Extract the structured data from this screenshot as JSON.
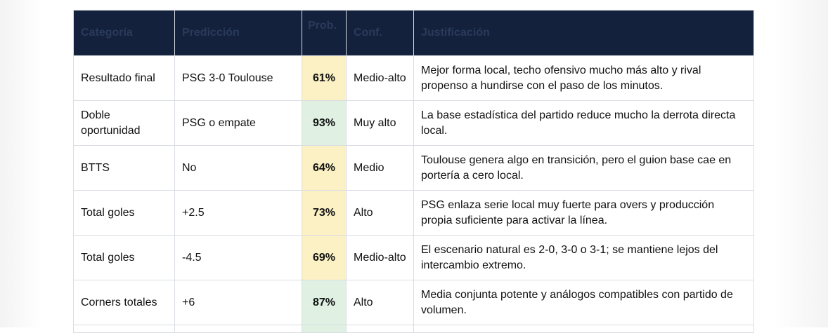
{
  "headers": {
    "categoria": "Categoría",
    "prediccion": "Predicción",
    "prob": "Prob.",
    "conf": "Conf.",
    "justificacion": "Justificación"
  },
  "colors": {
    "header_bg": "#14213d",
    "prob_yellow": "#fbf1c4",
    "prob_green": "#e0f1e3"
  },
  "rows": [
    {
      "categoria": "Resultado final",
      "prediccion": "PSG 3-0 Toulouse",
      "prob": "61%",
      "prob_color": "#fbf1c4",
      "conf": "Medio-alto",
      "justificacion": "Mejor forma local, techo ofensivo mucho más alto y rival propenso a hundirse con el paso de los minutos."
    },
    {
      "categoria": "Doble oportunidad",
      "prediccion": "PSG o empate",
      "prob": "93%",
      "prob_color": "#e0f1e3",
      "conf": "Muy alto",
      "justificacion": "La base estadística del partido reduce mucho la derrota directa local."
    },
    {
      "categoria": "BTTS",
      "prediccion": "No",
      "prob": "64%",
      "prob_color": "#fbf1c4",
      "conf": "Medio",
      "justificacion": "Toulouse genera algo en transición, pero el guion base cae en portería a cero local."
    },
    {
      "categoria": "Total goles",
      "prediccion": "+2.5",
      "prob": "73%",
      "prob_color": "#fbf1c4",
      "conf": "Alto",
      "justificacion": "PSG enlaza serie local muy fuerte para overs y producción propia suficiente para activar la línea."
    },
    {
      "categoria": "Total goles",
      "prediccion": "-4.5",
      "prob": "69%",
      "prob_color": "#fbf1c4",
      "conf": "Medio-alto",
      "justificacion": "El escenario natural es 2-0, 3-0 o 3-1; se mantiene lejos del intercambio extremo."
    },
    {
      "categoria": "Corners totales",
      "prediccion": "+6",
      "prob": "87%",
      "prob_color": "#e0f1e3",
      "conf": "Alto",
      "justificacion": "Media conjunta potente y análogos compatibles con partido de volumen."
    }
  ]
}
